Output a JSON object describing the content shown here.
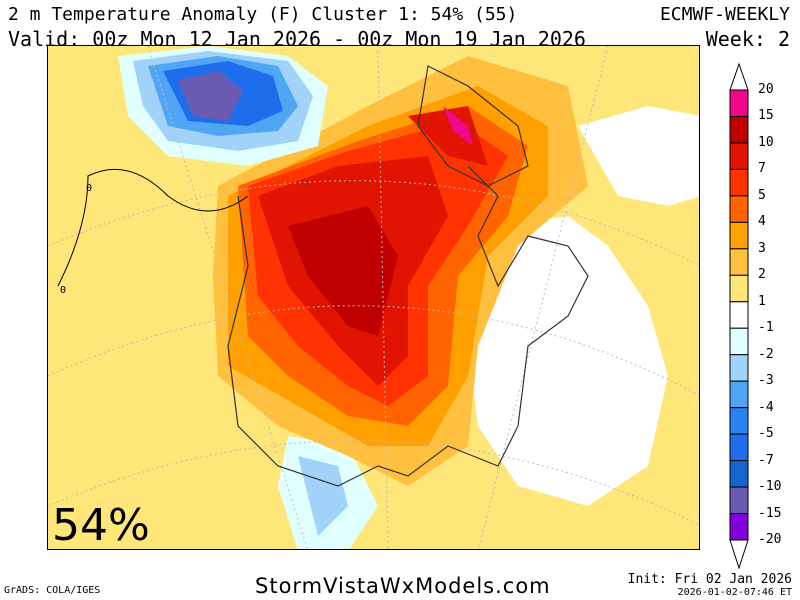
{
  "header": {
    "title": "2 m Temperature Anomaly (F) Cluster 1: 54% (55)",
    "valid": "Valid: 00z Mon 12 Jan 2026 - 00z Mon 19 Jan 2026",
    "model": "ECMWF-WEEKLY",
    "week": "Week: 2"
  },
  "map": {
    "cluster_percent": "54%",
    "contour_label": "0"
  },
  "colorbar": {
    "labels": [
      "20",
      "15",
      "10",
      "7",
      "5",
      "4",
      "3",
      "2",
      "1",
      "-1",
      "-2",
      "-3",
      "-4",
      "-5",
      "-7",
      "-10",
      "-15",
      "-20"
    ],
    "colors": [
      "#f0088c",
      "#c00000",
      "#e01400",
      "#ff3200",
      "#ff6400",
      "#ffa000",
      "#ffc040",
      "#ffe678",
      "#ffffff",
      "#e0ffff",
      "#a0d2fa",
      "#50a5f5",
      "#2882f0",
      "#1e6eeb",
      "#1464d2",
      "#6a5ab0",
      "#8200dc"
    ]
  },
  "footer": {
    "grads": "GrADS: COLA/IGES",
    "site": "StormVistaWxModels.com",
    "init": "Init: Fri 02 Jan 2026",
    "stamp": "2026-01-02-07:46 ET"
  }
}
